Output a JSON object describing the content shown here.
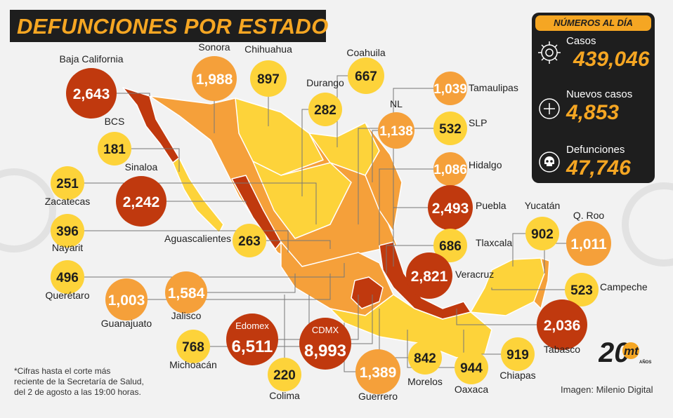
{
  "title": "DEFUNCIONES POR ESTADO",
  "stats": {
    "header": "NÚMEROS AL DÍA",
    "items": [
      {
        "label": "Casos",
        "value": "439,046",
        "icon": "virus-icon"
      },
      {
        "label": "Nuevos casos",
        "value": "4,853",
        "icon": "plus-circle-icon"
      },
      {
        "label": "Defunciones",
        "value": "47,746",
        "icon": "skull-icon"
      }
    ]
  },
  "legend_colors": {
    "high": "#c0390e",
    "mid": "#f5a03a",
    "low": "#fdd33a"
  },
  "chart_data": {
    "type": "table",
    "title": "DEFUNCIONES POR ESTADO",
    "series": [
      {
        "name": "Defunciones",
        "unit": "personas"
      }
    ],
    "states": [
      {
        "name": "Baja California",
        "value": 2643,
        "display": "2,643",
        "level": "high"
      },
      {
        "name": "Sonora",
        "value": 1988,
        "display": "1,988",
        "level": "mid"
      },
      {
        "name": "Chihuahua",
        "value": 897,
        "display": "897",
        "level": "low"
      },
      {
        "name": "Coahuila",
        "value": 667,
        "display": "667",
        "level": "low"
      },
      {
        "name": "Durango",
        "value": 282,
        "display": "282",
        "level": "low"
      },
      {
        "name": "Tamaulipas",
        "value": 1039,
        "display": "1,039",
        "level": "mid"
      },
      {
        "name": "NL",
        "value": 1138,
        "display": "1,138",
        "level": "mid"
      },
      {
        "name": "SLP",
        "value": 532,
        "display": "532",
        "level": "low"
      },
      {
        "name": "BCS",
        "value": 181,
        "display": "181",
        "level": "low"
      },
      {
        "name": "Hidalgo",
        "value": 1086,
        "display": "1,086",
        "level": "mid"
      },
      {
        "name": "Sinaloa",
        "value": 2242,
        "display": "2,242",
        "level": "high"
      },
      {
        "name": "Zacatecas",
        "value": 251,
        "display": "251",
        "level": "low"
      },
      {
        "name": "Puebla",
        "value": 2493,
        "display": "2,493",
        "level": "high"
      },
      {
        "name": "Yucatán",
        "value": 902,
        "display": "902",
        "level": "low"
      },
      {
        "name": "Q. Roo",
        "value": 1011,
        "display": "1,011",
        "level": "mid"
      },
      {
        "name": "Nayarit",
        "value": 396,
        "display": "396",
        "level": "low"
      },
      {
        "name": "Aguascalientes",
        "value": 263,
        "display": "263",
        "level": "low"
      },
      {
        "name": "Tlaxcala",
        "value": 686,
        "display": "686",
        "level": "low"
      },
      {
        "name": "Querétaro",
        "value": 496,
        "display": "496",
        "level": "low"
      },
      {
        "name": "Veracruz",
        "value": 2821,
        "display": "2,821",
        "level": "high"
      },
      {
        "name": "Campeche",
        "value": 523,
        "display": "523",
        "level": "low"
      },
      {
        "name": "Guanajuato",
        "value": 1003,
        "display": "1,003",
        "level": "mid"
      },
      {
        "name": "Jalisco",
        "value": 1584,
        "display": "1,584",
        "level": "mid"
      },
      {
        "name": "Edomex",
        "value": 6511,
        "display": "6,511",
        "level": "high"
      },
      {
        "name": "CDMX",
        "value": 8993,
        "display": "8,993",
        "level": "high"
      },
      {
        "name": "Tabasco",
        "value": 2036,
        "display": "2,036",
        "level": "high"
      },
      {
        "name": "Michoacán",
        "value": 768,
        "display": "768",
        "level": "low"
      },
      {
        "name": "Colima",
        "value": 220,
        "display": "220",
        "level": "low"
      },
      {
        "name": "Guerrero",
        "value": 1389,
        "display": "1,389",
        "level": "mid"
      },
      {
        "name": "Morelos",
        "value": 842,
        "display": "842",
        "level": "low"
      },
      {
        "name": "Oaxaca",
        "value": 944,
        "display": "944",
        "level": "low"
      },
      {
        "name": "Chiapas",
        "value": 919,
        "display": "919",
        "level": "low"
      }
    ]
  },
  "footnote": "*Cifras hasta el corte más\nreciente de la Secretaría de Salud,\ndel 2 de agosto a las 19:00 horas.",
  "credit": "Imagen: Milenio Digital",
  "logo": {
    "number": "20",
    "brand": "mt",
    "sub": "AÑOS"
  }
}
